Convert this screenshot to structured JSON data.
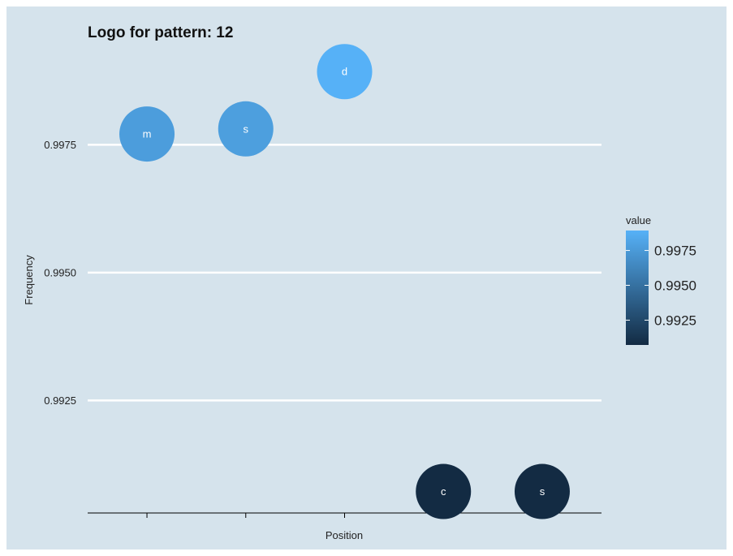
{
  "chart_data": {
    "type": "scatter",
    "title": "Logo for pattern:  12",
    "xlabel": "Position",
    "ylabel": "Frequency",
    "x": [
      1,
      2,
      3,
      4,
      5
    ],
    "points": [
      {
        "x": 1,
        "y": 0.99771,
        "label": "m",
        "value": 0.99771
      },
      {
        "x": 2,
        "y": 0.99781,
        "label": "s",
        "value": 0.99781
      },
      {
        "x": 3,
        "y": 0.99893,
        "label": "d",
        "value": 0.99893
      },
      {
        "x": 4,
        "y": 0.99072,
        "label": "c",
        "value": 0.99072
      },
      {
        "x": 5,
        "y": 0.99072,
        "label": "s",
        "value": 0.99072
      }
    ],
    "xlim": [
      0.4,
      5.6
    ],
    "ylim": [
      0.9903,
      0.9996
    ],
    "yticks": [
      0.9925,
      0.995,
      0.9975
    ],
    "ytick_labels": [
      "0.9925",
      "0.9950",
      "0.9975"
    ],
    "grid": {
      "horizontal_major": true,
      "vertical": false
    },
    "legend": {
      "title": "value",
      "placement": "right",
      "type": "colorbar",
      "range": [
        0.99072,
        0.99893
      ],
      "ticks": [
        0.9925,
        0.995,
        0.9975
      ],
      "tick_labels": [
        "0.9925",
        "0.9950",
        "0.9975"
      ]
    },
    "colors": {
      "background": "#d5e3ec",
      "gridline": "#ffffff",
      "axis": "#000000",
      "low": "#132b43",
      "high": "#56b1f7",
      "point_text": "#ffffff"
    }
  }
}
